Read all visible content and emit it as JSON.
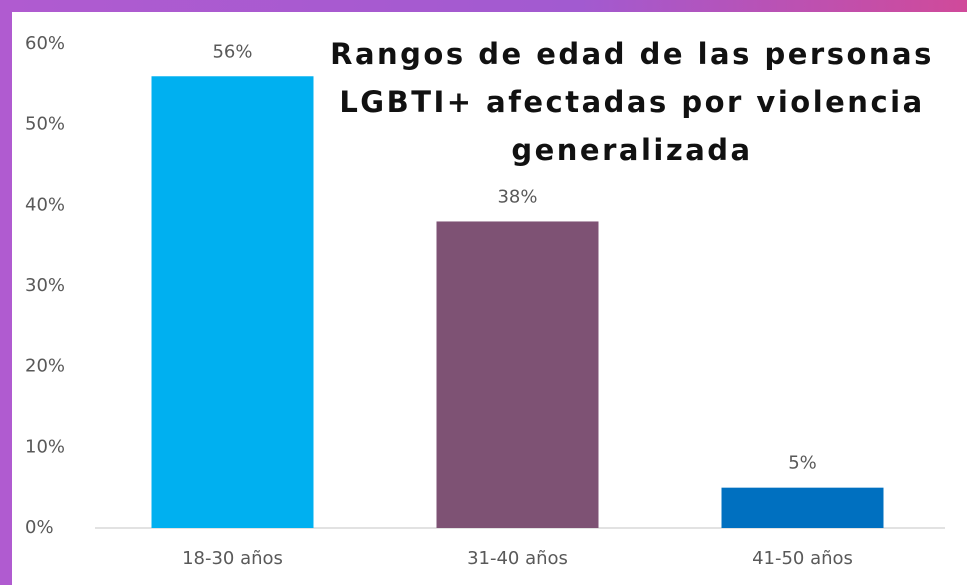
{
  "chart_data": {
    "type": "bar",
    "title": "Rangos de edad de las personas LGBTI+ afectadas por violencia generalizada",
    "categories": [
      "18-30 años",
      "31-40 años",
      "41-50 años"
    ],
    "values": [
      56,
      38,
      5
    ],
    "value_labels": [
      "56%",
      "38%",
      "5%"
    ],
    "colors": [
      "#00b0f0",
      "#7e5274",
      "#0070c0"
    ],
    "ylim": [
      0,
      60
    ],
    "yticks": [
      {
        "value": 0,
        "label": "0%"
      },
      {
        "value": 10,
        "label": "10%"
      },
      {
        "value": 20,
        "label": "20%"
      },
      {
        "value": 30,
        "label": "30%"
      },
      {
        "value": 40,
        "label": "40%"
      },
      {
        "value": 50,
        "label": "50%"
      },
      {
        "value": 60,
        "label": "60%"
      }
    ],
    "grid": false
  }
}
